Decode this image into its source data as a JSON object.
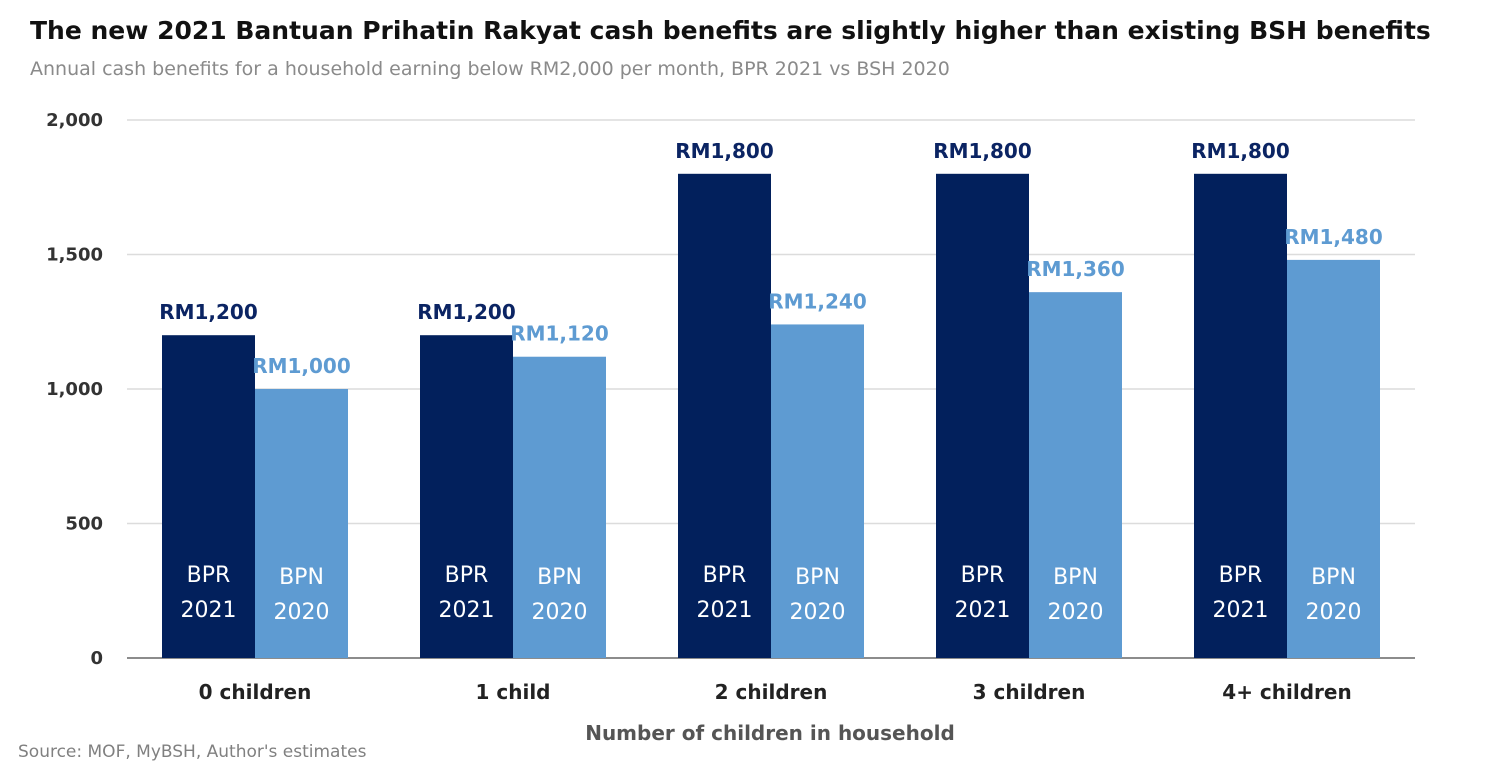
{
  "chart_data": {
    "type": "bar",
    "title": "The new 2021 Bantuan Prihatin Rakyat cash benefits are slightly higher than existing BSH benefits",
    "subtitle": "Annual cash benefits for a household earning below RM2,000 per month, BPR 2021 vs BSH 2020",
    "xlabel": "Number of children in household",
    "ylabel": "",
    "source": "Source: MOF, MyBSH, Author's estimates",
    "categories": [
      "0 children",
      "1 child",
      "2 children",
      "3 children",
      "4+ children"
    ],
    "yticks": [
      0,
      500,
      1000,
      1500,
      2000
    ],
    "ytick_labels": [
      "0",
      "500",
      "1,000",
      "1,500",
      "2,000"
    ],
    "ylim": [
      0,
      2000
    ],
    "grid": true,
    "series": [
      {
        "name": "BPR 2021",
        "name_lines": [
          "BPR",
          "2021"
        ],
        "color": "#02205c",
        "label_color": "#0b2463",
        "values": [
          1200,
          1200,
          1800,
          1800,
          1800
        ],
        "labels": [
          "RM1,200",
          "RM1,200",
          "RM1,800",
          "RM1,800",
          "RM1,800"
        ]
      },
      {
        "name": "BPN 2020",
        "name_lines": [
          "BPN",
          "2020"
        ],
        "color": "#5e9bd2",
        "label_color": "#5e9bd2",
        "values": [
          1000,
          1120,
          1240,
          1360,
          1480
        ],
        "labels": [
          "RM1,000",
          "RM1,120",
          "RM1,240",
          "RM1,360",
          "RM1,480"
        ]
      }
    ]
  }
}
